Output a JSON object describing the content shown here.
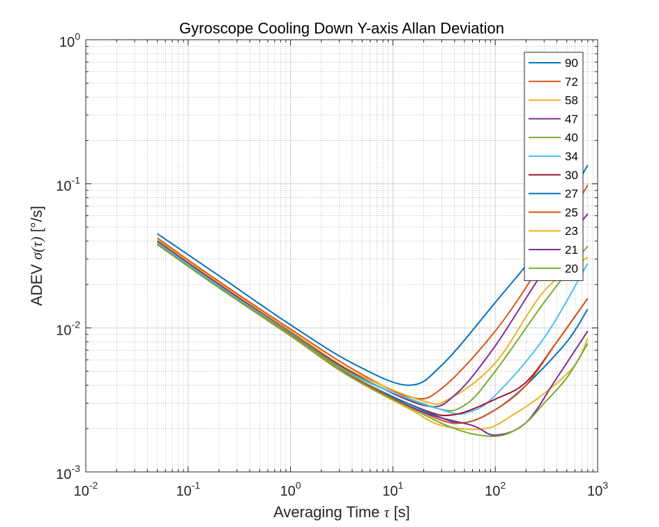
{
  "chart_data": {
    "type": "line",
    "title": "Gyroscope Cooling Down Y-axis Allan Deviation",
    "xlabel_text": "Averaging Time ",
    "xlabel_symbol": "τ",
    "xlabel_unit": " [s]",
    "ylabel_prefix": "ADEV ",
    "ylabel_symbol": "σ(τ)",
    "ylabel_unit": " [°/s]",
    "x_scale": "log",
    "y_scale": "log",
    "xlim": [
      0.01,
      1000
    ],
    "ylim": [
      0.001,
      1
    ],
    "grid": true,
    "minor_grid": true,
    "legend_position": "top-right",
    "x_ticks": [
      {
        "base": "10",
        "exp": "-2",
        "value": 0.01
      },
      {
        "base": "10",
        "exp": "-1",
        "value": 0.1
      },
      {
        "base": "10",
        "exp": "0",
        "value": 1
      },
      {
        "base": "10",
        "exp": "1",
        "value": 10
      },
      {
        "base": "10",
        "exp": "2",
        "value": 100
      },
      {
        "base": "10",
        "exp": "3",
        "value": 1000
      }
    ],
    "y_ticks": [
      {
        "base": "10",
        "exp": "-3",
        "value": 0.001
      },
      {
        "base": "10",
        "exp": "-2",
        "value": 0.01
      },
      {
        "base": "10",
        "exp": "-1",
        "value": 0.1
      },
      {
        "base": "10",
        "exp": "0",
        "value": 1
      }
    ],
    "series": [
      {
        "name": "90",
        "color": "#0072BD",
        "points": [
          [
            0.05,
            0.045
          ],
          [
            0.2,
            0.023
          ],
          [
            1,
            0.0105
          ],
          [
            4,
            0.0057
          ],
          [
            14,
            0.004
          ],
          [
            30,
            0.0055
          ],
          [
            100,
            0.015
          ],
          [
            300,
            0.04
          ],
          [
            800,
            0.135
          ]
        ]
      },
      {
        "name": "72",
        "color": "#D95319",
        "points": [
          [
            0.05,
            0.042
          ],
          [
            0.2,
            0.021
          ],
          [
            1,
            0.0098
          ],
          [
            4,
            0.0052
          ],
          [
            15,
            0.0033
          ],
          [
            30,
            0.0038
          ],
          [
            100,
            0.0095
          ],
          [
            300,
            0.03
          ],
          [
            800,
            0.098
          ]
        ]
      },
      {
        "name": "58",
        "color": "#EDB120",
        "points": [
          [
            0.05,
            0.041
          ],
          [
            0.2,
            0.0205
          ],
          [
            1,
            0.0095
          ],
          [
            4,
            0.005
          ],
          [
            20,
            0.0031
          ],
          [
            35,
            0.0032
          ],
          [
            100,
            0.0057
          ],
          [
            300,
            0.018
          ],
          [
            800,
            0.031
          ]
        ]
      },
      {
        "name": "47",
        "color": "#7E2F8E",
        "points": [
          [
            0.05,
            0.04
          ],
          [
            0.2,
            0.02
          ],
          [
            1,
            0.0093
          ],
          [
            4,
            0.0049
          ],
          [
            20,
            0.0029
          ],
          [
            40,
            0.0034
          ],
          [
            100,
            0.0075
          ],
          [
            300,
            0.025
          ],
          [
            800,
            0.062
          ]
        ]
      },
      {
        "name": "40",
        "color": "#77AC30",
        "points": [
          [
            0.05,
            0.039
          ],
          [
            0.2,
            0.0195
          ],
          [
            1,
            0.0092
          ],
          [
            4,
            0.0048
          ],
          [
            25,
            0.0028
          ],
          [
            50,
            0.0029
          ],
          [
            100,
            0.005
          ],
          [
            300,
            0.015
          ],
          [
            800,
            0.037
          ]
        ]
      },
      {
        "name": "34",
        "color": "#4DBEEE",
        "points": [
          [
            0.05,
            0.039
          ],
          [
            0.2,
            0.0195
          ],
          [
            1,
            0.0091
          ],
          [
            4,
            0.0047
          ],
          [
            30,
            0.0027
          ],
          [
            55,
            0.0026
          ],
          [
            100,
            0.0034
          ],
          [
            300,
            0.0085
          ],
          [
            800,
            0.028
          ]
        ]
      },
      {
        "name": "30",
        "color": "#A2142F",
        "points": [
          [
            0.05,
            0.038
          ],
          [
            0.2,
            0.019
          ],
          [
            1,
            0.009
          ],
          [
            4,
            0.0046
          ],
          [
            20,
            0.0027
          ],
          [
            40,
            0.0025
          ],
          [
            100,
            0.0032
          ],
          [
            200,
            0.0042
          ],
          [
            400,
            0.008
          ],
          [
            800,
            0.016
          ]
        ]
      },
      {
        "name": "27",
        "color": "#0072BD",
        "points": [
          [
            0.05,
            0.038
          ],
          [
            0.2,
            0.019
          ],
          [
            1,
            0.0089
          ],
          [
            4,
            0.0046
          ],
          [
            25,
            0.0025
          ],
          [
            50,
            0.0022
          ],
          [
            100,
            0.0027
          ],
          [
            200,
            0.004
          ],
          [
            500,
            0.008
          ],
          [
            800,
            0.0135
          ]
        ]
      },
      {
        "name": "25",
        "color": "#D95319",
        "points": [
          [
            0.05,
            0.038
          ],
          [
            0.2,
            0.019
          ],
          [
            1,
            0.0089
          ],
          [
            4,
            0.0046
          ],
          [
            25,
            0.0024
          ],
          [
            50,
            0.0022
          ],
          [
            100,
            0.0027
          ],
          [
            200,
            0.004
          ],
          [
            400,
            0.008
          ],
          [
            800,
            0.016
          ]
        ]
      },
      {
        "name": "23",
        "color": "#EDB120",
        "points": [
          [
            0.05,
            0.038
          ],
          [
            0.2,
            0.019
          ],
          [
            1,
            0.0089
          ],
          [
            4,
            0.0045
          ],
          [
            15,
            0.0027
          ],
          [
            30,
            0.0021
          ],
          [
            80,
            0.002
          ],
          [
            150,
            0.0025
          ],
          [
            300,
            0.0035
          ],
          [
            600,
            0.0055
          ],
          [
            800,
            0.0085
          ]
        ]
      },
      {
        "name": "21",
        "color": "#7E2F8E",
        "points": [
          [
            0.05,
            0.038
          ],
          [
            0.2,
            0.019
          ],
          [
            1,
            0.0088
          ],
          [
            4,
            0.0045
          ],
          [
            20,
            0.0026
          ],
          [
            60,
            0.0021
          ],
          [
            100,
            0.0018
          ],
          [
            200,
            0.0022
          ],
          [
            400,
            0.0045
          ],
          [
            800,
            0.0095
          ]
        ]
      },
      {
        "name": "20",
        "color": "#77AC30",
        "points": [
          [
            0.05,
            0.038
          ],
          [
            0.2,
            0.019
          ],
          [
            1,
            0.0088
          ],
          [
            4,
            0.0045
          ],
          [
            20,
            0.0025
          ],
          [
            40,
            0.002
          ],
          [
            70,
            0.0018
          ],
          [
            120,
            0.0018
          ],
          [
            200,
            0.0022
          ],
          [
            300,
            0.003
          ],
          [
            500,
            0.0045
          ],
          [
            800,
            0.0078
          ]
        ]
      }
    ]
  }
}
